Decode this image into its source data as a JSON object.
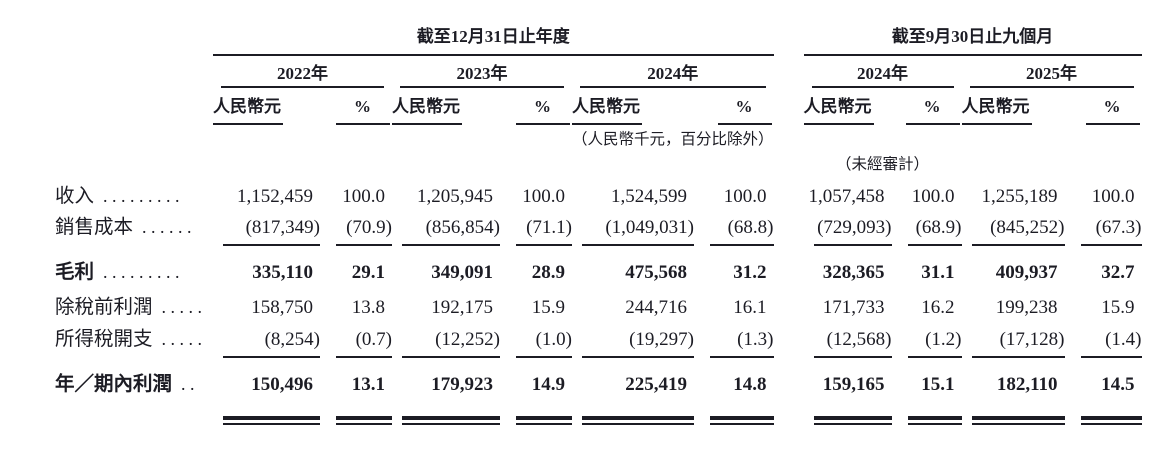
{
  "page": {
    "background": "#ffffff",
    "text_color": "#1c1c24"
  },
  "table": {
    "period_groups": [
      {
        "label": "截至12月31日止年度",
        "years": [
          "2022年",
          "2023年",
          "2024年"
        ]
      },
      {
        "label": "截至9月30日止九個月",
        "years": [
          "2024年",
          "2025年"
        ]
      }
    ],
    "subcolumn_headers": {
      "amount": "人民幣元",
      "percent": "%"
    },
    "unit_note": "（人民幣千元，百分比除外）",
    "unaudited_note": "（未經審計）",
    "rows": [
      {
        "label": "收入",
        "dots": ".........",
        "bold": false,
        "rule_below": false,
        "double_rule_below": false,
        "values": [
          [
            "1,152,459",
            "100.0"
          ],
          [
            "1,205,945",
            "100.0"
          ],
          [
            "1,524,599",
            "100.0"
          ],
          [
            "1,057,458",
            "100.0"
          ],
          [
            "1,255,189",
            "100.0"
          ]
        ]
      },
      {
        "label": "銷售成本",
        "dots": "......",
        "bold": false,
        "rule_below": true,
        "double_rule_below": false,
        "values": [
          [
            "(817,349)",
            "(70.9)"
          ],
          [
            "(856,854)",
            "(71.1)"
          ],
          [
            "(1,049,031)",
            "(68.8)"
          ],
          [
            "(729,093)",
            "(68.9)"
          ],
          [
            "(845,252)",
            "(67.3)"
          ]
        ]
      },
      {
        "label": "毛利",
        "dots": ".........",
        "bold": true,
        "rule_below": false,
        "double_rule_below": false,
        "values": [
          [
            "335,110",
            "29.1"
          ],
          [
            "349,091",
            "28.9"
          ],
          [
            "475,568",
            "31.2"
          ],
          [
            "328,365",
            "31.1"
          ],
          [
            "409,937",
            "32.7"
          ]
        ]
      },
      {
        "label": "除稅前利潤",
        "dots": ".....",
        "bold": false,
        "rule_below": false,
        "double_rule_below": false,
        "values": [
          [
            "158,750",
            "13.8"
          ],
          [
            "192,175",
            "15.9"
          ],
          [
            "244,716",
            "16.1"
          ],
          [
            "171,733",
            "16.2"
          ],
          [
            "199,238",
            "15.9"
          ]
        ]
      },
      {
        "label": "所得稅開支",
        "dots": ".....",
        "bold": false,
        "rule_below": true,
        "double_rule_below": false,
        "values": [
          [
            "(8,254)",
            "(0.7)"
          ],
          [
            "(12,252)",
            "(1.0)"
          ],
          [
            "(19,297)",
            "(1.3)"
          ],
          [
            "(12,568)",
            "(1.2)"
          ],
          [
            "(17,128)",
            "(1.4)"
          ]
        ]
      },
      {
        "label": "年／期內利潤",
        "dots": "..",
        "bold": true,
        "rule_below": false,
        "double_rule_below": true,
        "values": [
          [
            "150,496",
            "13.1"
          ],
          [
            "179,923",
            "14.9"
          ],
          [
            "225,419",
            "14.8"
          ],
          [
            "159,165",
            "15.1"
          ],
          [
            "182,110",
            "14.5"
          ]
        ]
      }
    ]
  }
}
